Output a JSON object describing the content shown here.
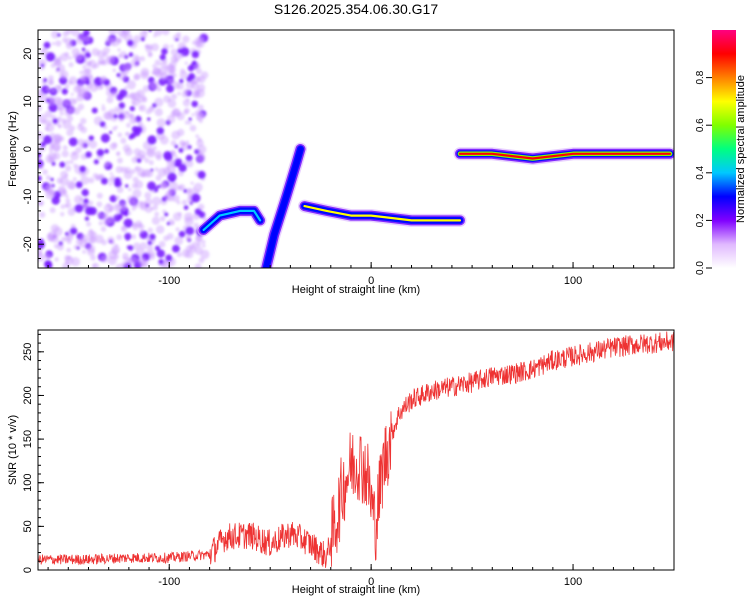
{
  "title": "S126.2025.354.06.30.G17",
  "chart_data": [
    {
      "type": "heatmap",
      "xlabel": "Height of straight line (km)",
      "ylabel": "Frequency (Hz)",
      "xlim": [
        -165,
        150
      ],
      "ylim": [
        -25,
        25
      ],
      "xticks": [
        -100,
        0,
        100
      ],
      "yticks": [
        -20,
        -10,
        0,
        10,
        20
      ],
      "colorbar": {
        "label": "Normalized spectral amplitude",
        "range": [
          0.0,
          1.0
        ],
        "ticks": [
          0.0,
          0.2,
          0.4,
          0.6,
          0.8
        ],
        "tick_labels": [
          "0.0",
          "0.2",
          "0.4",
          "0.6",
          "0.8"
        ],
        "colors": [
          "#ffffff",
          "#e0b8ff",
          "#8000ff",
          "#0000ff",
          "#00c8ff",
          "#00ff80",
          "#80ff00",
          "#ffff00",
          "#ff8000",
          "#ff0000",
          "#ff0080"
        ]
      },
      "features": [
        {
          "x_range": [
            -165,
            -82
          ],
          "y_range": [
            -25,
            25
          ],
          "level": 0.15,
          "pattern": "scattered noise"
        },
        {
          "points": [
            [
              -83,
              -17
            ],
            [
              -75,
              -14
            ],
            [
              -65,
              -13
            ],
            [
              -58,
              -13
            ],
            [
              -55,
              -15
            ]
          ],
          "level": 0.4
        },
        {
          "points": [
            [
              -52,
              -25
            ],
            [
              -48,
              -18
            ],
            [
              -42,
              -10
            ],
            [
              -37,
              -3
            ],
            [
              -35,
              0
            ]
          ],
          "level": 0.3
        },
        {
          "points": [
            [
              -33,
              -12
            ],
            [
              -22,
              -13
            ],
            [
              -10,
              -14
            ],
            [
              0,
              -14
            ],
            [
              20,
              -15
            ],
            [
              44,
              -15
            ]
          ],
          "level": 0.7
        },
        {
          "points": [
            [
              44,
              -1
            ],
            [
              60,
              -1
            ],
            [
              80,
              -2
            ],
            [
              100,
              -1
            ],
            [
              120,
              -1
            ],
            [
              148,
              -1
            ]
          ],
          "level": 0.95
        }
      ]
    },
    {
      "type": "line",
      "xlabel": "Height of straight line (km)",
      "ylabel": "SNR (10 * v/v)",
      "xlim": [
        -165,
        150
      ],
      "ylim": [
        0,
        275
      ],
      "xticks": [
        -100,
        0,
        100
      ],
      "yticks": [
        0,
        50,
        100,
        150,
        200,
        250
      ],
      "color": "#ee3333",
      "series": [
        {
          "x": [
            -165,
            -140,
            -120,
            -100,
            -80,
            -72,
            -60,
            -50,
            -40,
            -32,
            -22,
            -17,
            -14,
            -10,
            -6,
            -2,
            2,
            6,
            10,
            14,
            20,
            30,
            40,
            50,
            60,
            70,
            80,
            90,
            100,
            110,
            120,
            130,
            140,
            150
          ],
          "values": [
            12,
            12,
            14,
            14,
            18,
            38,
            40,
            30,
            42,
            33,
            15,
            60,
            95,
            120,
            125,
            110,
            50,
            120,
            155,
            180,
            195,
            205,
            210,
            215,
            222,
            225,
            230,
            240,
            245,
            250,
            255,
            258,
            260,
            262
          ]
        }
      ]
    }
  ]
}
